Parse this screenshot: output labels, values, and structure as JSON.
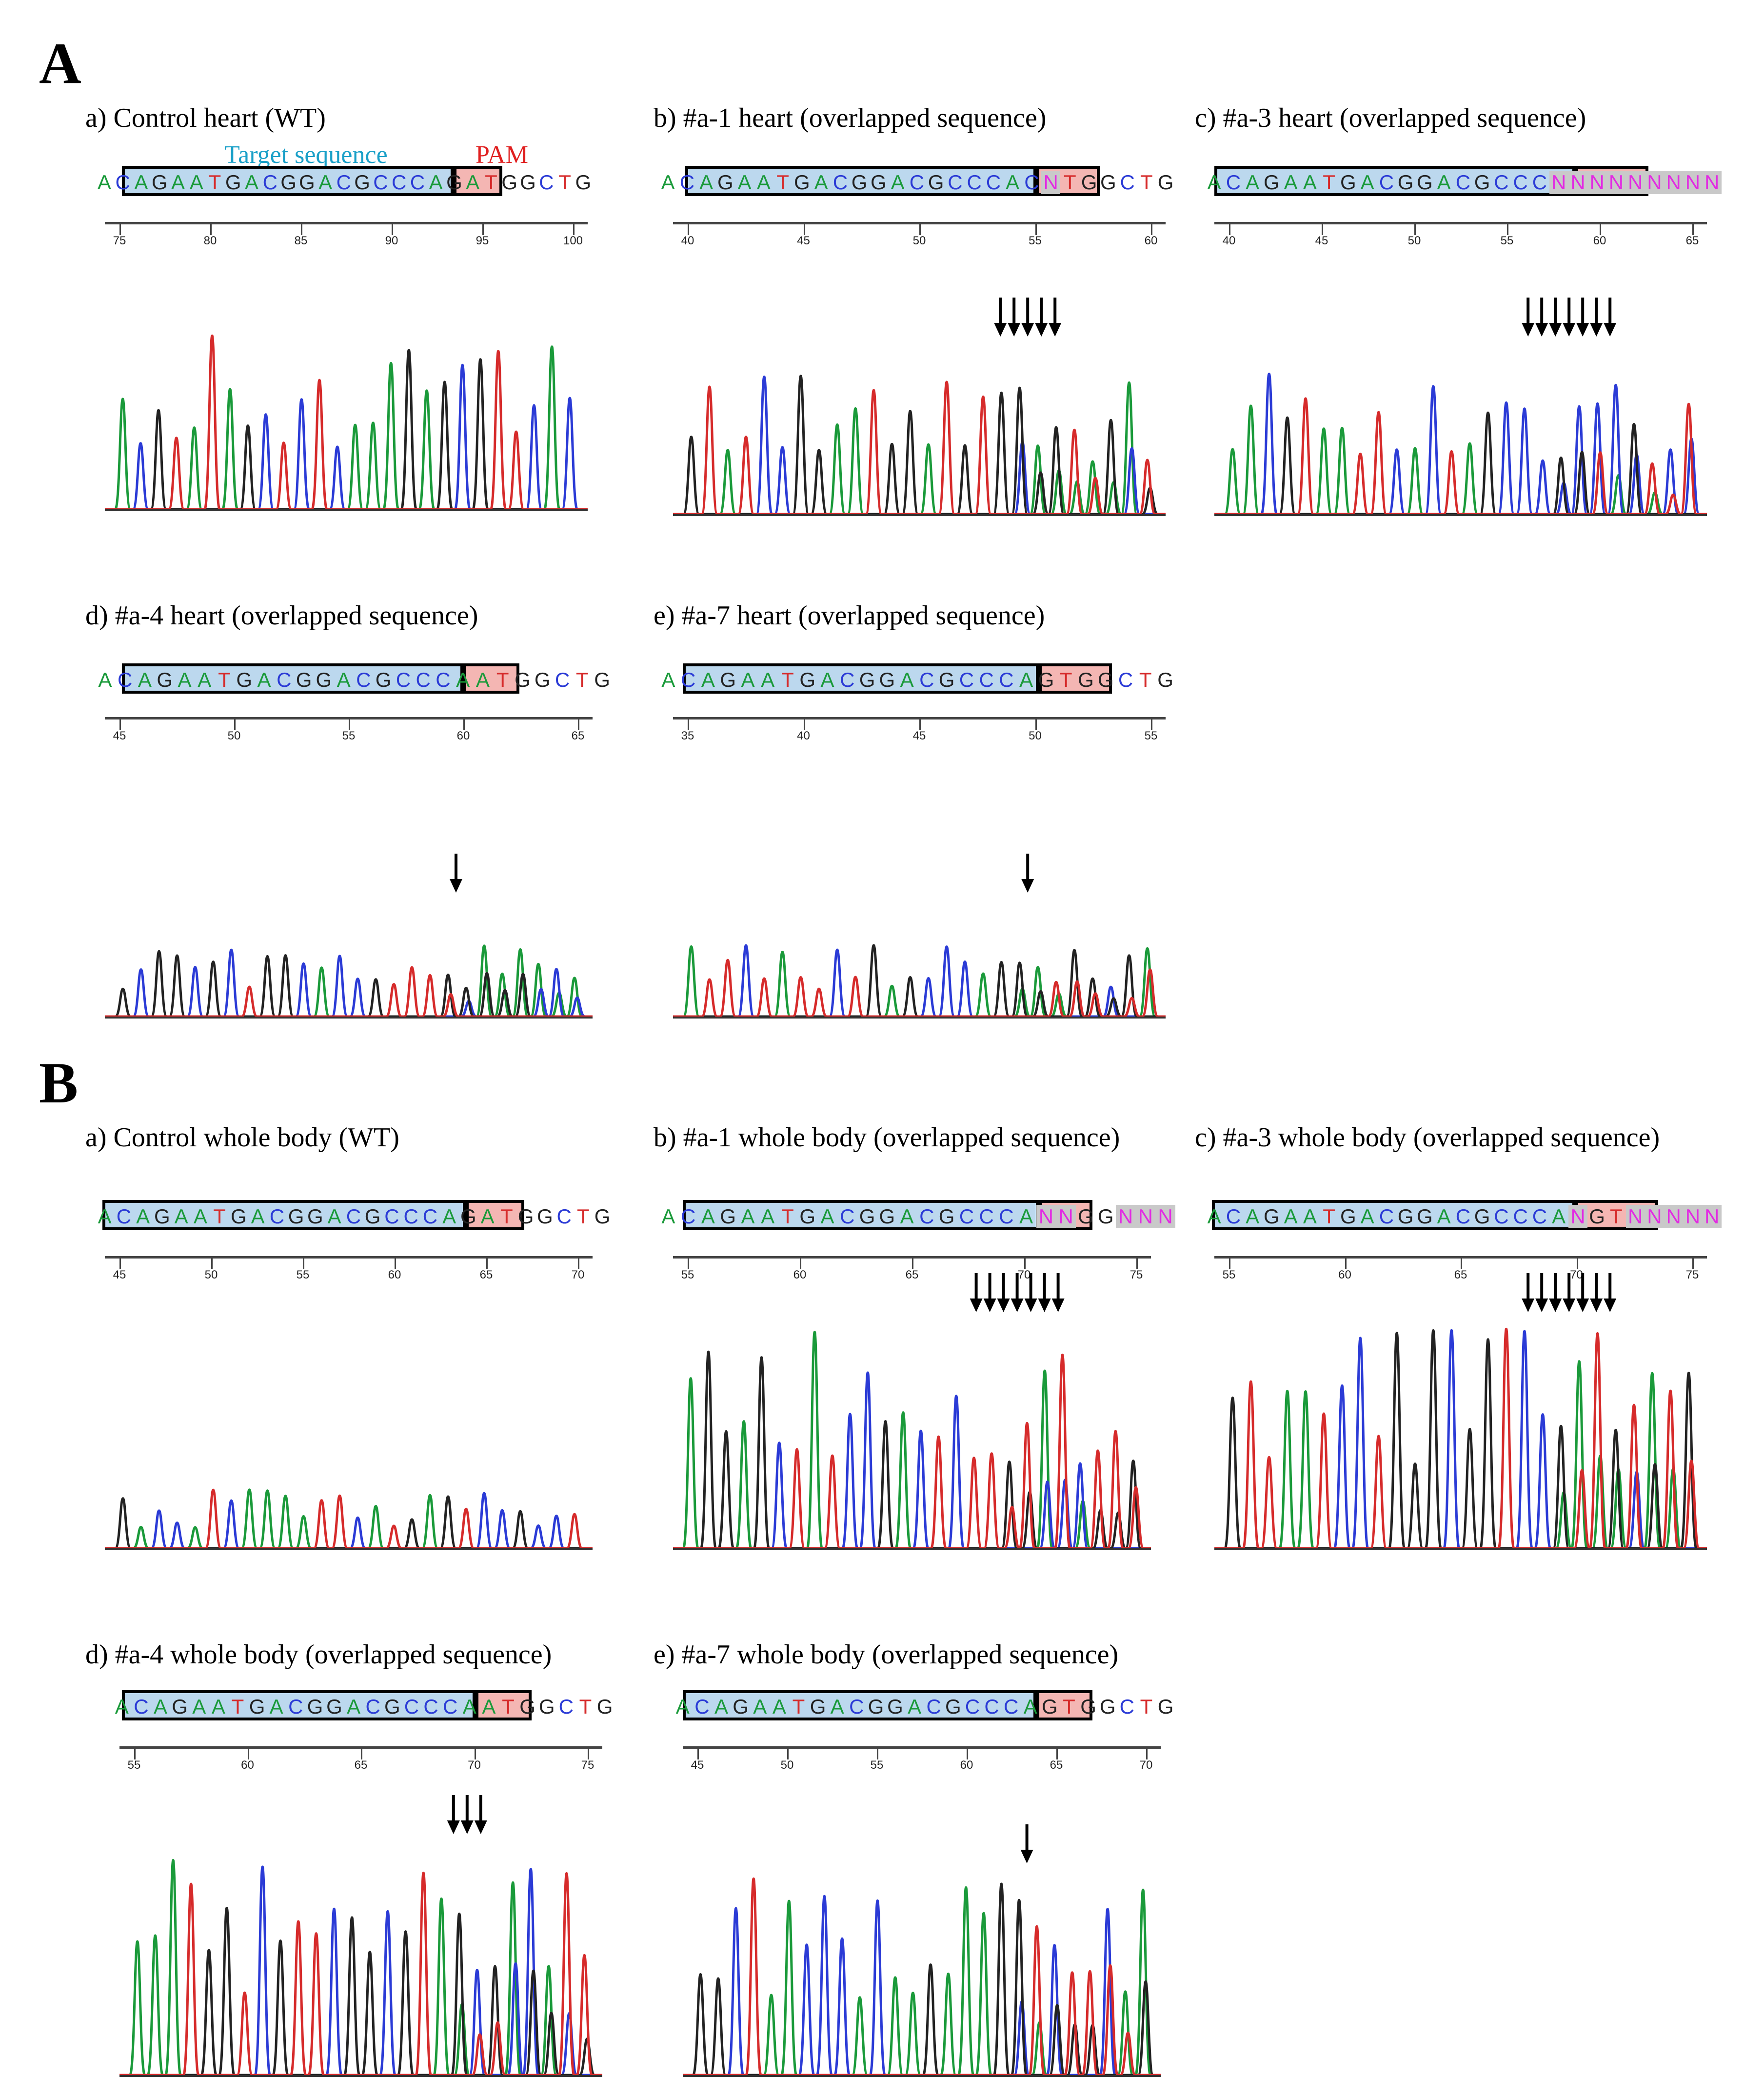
{
  "sections": [
    {
      "label": "A",
      "panels": [
        {
          "id": "A-a",
          "title": "a) Control heart (WT)",
          "sequence": "ACAGAATGACGGACGCCCAGATGGCTG",
          "ticks": [
            "75",
            "80",
            "85",
            "90",
            "95",
            "100"
          ],
          "arrows": 0,
          "peaks": "high"
        },
        {
          "id": "A-b",
          "title": "b) #a-1 heart  (overlapped sequence)",
          "sequence": "ACAGAATGACGGACGCCCACNTGGCTG",
          "ticks": [
            "40",
            "45",
            "50",
            "55",
            "60"
          ],
          "arrows": 5,
          "peaks": "mid"
        },
        {
          "id": "A-c",
          "title": "c) #a-3 heart  (overlapped sequence)",
          "sequence": "ACAGAATGACGGACGCCCNNNNNNNNN",
          "ticks": [
            "40",
            "45",
            "50",
            "55",
            "60",
            "65"
          ],
          "arrows": 7,
          "peaks": "mid"
        },
        {
          "id": "A-d",
          "title": "d) #a-4 heart  (overlapped sequence)",
          "sequence": "ACAGAATGACGGACGCCCAATGGCTG",
          "ticks": [
            "45",
            "50",
            "55",
            "60",
            "65"
          ],
          "arrows": 1,
          "peaks": "low"
        },
        {
          "id": "A-e",
          "title": "e) #a-7 heart  (overlapped sequence)",
          "sequence": "ACAGAATGACGGACGCCCAGTGGCTG",
          "ticks": [
            "35",
            "40",
            "45",
            "50",
            "55"
          ],
          "arrows": 1,
          "peaks": "low"
        }
      ],
      "legend": {
        "target": "Target sequence",
        "pam": "PAM"
      }
    },
    {
      "label": "B",
      "panels": [
        {
          "id": "B-a",
          "title": "a) Control whole body (WT)",
          "sequence": "ACAGAATGACGGACGCCCAGATGGCTG",
          "ticks": [
            "45",
            "50",
            "55",
            "60",
            "65",
            "70"
          ],
          "arrows": 0,
          "peaks": "low"
        },
        {
          "id": "B-b",
          "title": "b) #a-1 whole  body (overlapped sequence)",
          "sequence": "ACAGAATGACGGACGCCCANNGGNNN",
          "ticks": [
            "55",
            "60",
            "65",
            "70",
            "75"
          ],
          "arrows": 7,
          "peaks": "high"
        },
        {
          "id": "B-c",
          "title": "c) #a-3 whole  body (overlapped sequence)",
          "sequence": "ACAGAATGACGGACGCCCANGTNNNNN",
          "ticks": [
            "55",
            "60",
            "65",
            "70",
            "75"
          ],
          "arrows": 7,
          "peaks": "high"
        },
        {
          "id": "B-d",
          "title": "d) #a-4 whole  body (overlapped sequence)",
          "sequence": "ACAGAATGACGGACGCCCAATGGCTG",
          "ticks": [
            "55",
            "60",
            "65",
            "70",
            "75"
          ],
          "arrows": 3,
          "peaks": "high"
        },
        {
          "id": "B-e",
          "title": "e) #a-7 whole  body (overlapped sequence)",
          "sequence": "ACAGAATGACGGACGCCCAGTGGCTG",
          "ticks": [
            "45",
            "50",
            "55",
            "60",
            "65",
            "70"
          ],
          "arrows": 1,
          "peaks": "high"
        }
      ]
    }
  ],
  "colors": {
    "A": "#1a9a3a",
    "C": "#2b3bd6",
    "G": "#222222",
    "T": "#d62b2b",
    "target_box": "#bcd8ee",
    "pam_box": "#f4b6b3"
  }
}
